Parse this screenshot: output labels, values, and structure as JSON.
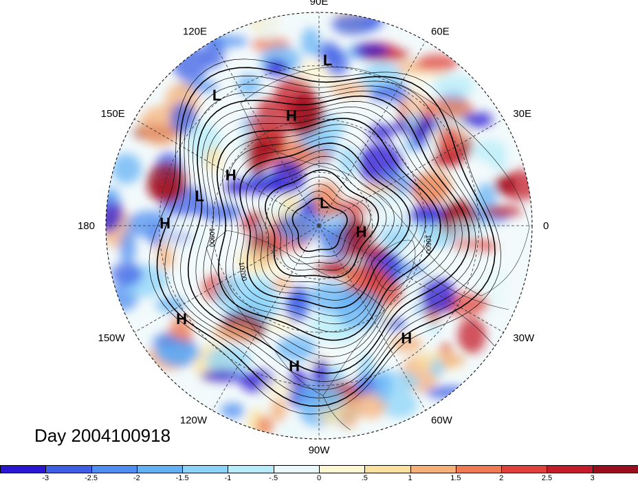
{
  "title": "Day 2004100918",
  "map": {
    "projection": "polar-stereographic-north",
    "longitude_labels": [
      {
        "text": "90E",
        "lon": 90
      },
      {
        "text": "60E",
        "lon": 60
      },
      {
        "text": "30E",
        "lon": 30
      },
      {
        "text": "0",
        "lon": 0
      },
      {
        "text": "30W",
        "lon": -30
      },
      {
        "text": "60W",
        "lon": -60
      },
      {
        "text": "90W",
        "lon": -90
      },
      {
        "text": "120W",
        "lon": -120
      },
      {
        "text": "150W",
        "lon": -150
      },
      {
        "text": "180",
        "lon": 180
      },
      {
        "text": "150E",
        "lon": 150
      },
      {
        "text": "120E",
        "lon": 120
      }
    ],
    "pressure_centers": [
      {
        "type": "L",
        "lon": 87,
        "lat_approx": 20
      },
      {
        "type": "L",
        "lon": 128,
        "lat_approx": 20
      },
      {
        "type": "H",
        "lon": 104,
        "lat_approx": 42
      },
      {
        "type": "H",
        "lon": 150,
        "lat_approx": 47
      },
      {
        "type": "L",
        "lon": 166,
        "lat_approx": 38
      },
      {
        "type": "H",
        "lon": 179,
        "lat_approx": 25
      },
      {
        "type": "L",
        "lon": 77,
        "lat_approx": 80
      },
      {
        "type": "H",
        "lon": -8,
        "lat_approx": 72
      },
      {
        "type": "H",
        "lon": -146,
        "lat_approx": 20
      },
      {
        "type": "H",
        "lon": -100,
        "lat_approx": 30
      },
      {
        "type": "H",
        "lon": -52,
        "lat_approx": 30
      }
    ],
    "contour_labels": [
      "10900",
      "10700",
      "10600"
    ]
  },
  "colorbar": {
    "ticks": [
      "-3",
      "-2.5",
      "-2",
      "-1.5",
      "-1",
      "-.5",
      "0",
      ".5",
      "1",
      "1.5",
      "2",
      "2.5",
      "3"
    ],
    "colors": [
      "#2a16d2",
      "#3d5fe6",
      "#4d8ef0",
      "#63b1f5",
      "#8bd3f8",
      "#b6ecfa",
      "#e8f8fb",
      "#fdf6d2",
      "#fbe1a0",
      "#f6b078",
      "#ee7b52",
      "#e0413a",
      "#c41b2a",
      "#9c0d1e"
    ]
  }
}
